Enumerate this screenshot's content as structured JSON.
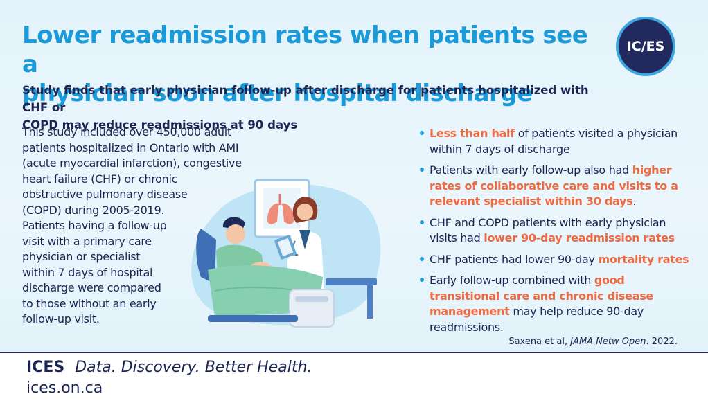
{
  "title": {
    "line1": "Lower readmission rates when patients see a",
    "line2": "physician soon after hospital discharge"
  },
  "subtitle": {
    "line1": "Study finds that early physician follow-up after discharge for patients hospitalized with CHF or",
    "line2": "COPD may reduce readmissions at 90 days"
  },
  "logo": {
    "text": "IC/ES"
  },
  "intro": {
    "lines": [
      "This study included over 450,000 adult",
      "patients hospitalized in Ontario with AMI",
      "(acute myocardial infarction), congestive",
      "heart failure (CHF) or chronic",
      "obstructive pulmonary disease",
      "(COPD) during 2005-2019.",
      "Patients having a follow-up",
      "visit with a primary care",
      "physician or specialist",
      "within 7 days of hospital",
      "discharge were compared",
      "to those without an early",
      "follow-up visit."
    ]
  },
  "bullets": [
    {
      "pre": "",
      "hl": "Less than half",
      "post": " of patients visited a physician within 7 days of discharge"
    },
    {
      "pre": "Patients with early follow-up also had ",
      "hl": "higher rates of collaborative care and visits to a relevant specialist within 30 days",
      "post": "."
    },
    {
      "pre": "CHF and COPD patients with early physician visits had ",
      "hl": "lower 90-day readmission rates",
      "post": ""
    },
    {
      "pre": "CHF patients had lower 90-day ",
      "hl": "mortality rates",
      "post": ""
    },
    {
      "pre": "Early follow-up combined with ",
      "hl": "good transitional care and chronic disease management",
      "post": " may help reduce 90-day readmissions."
    }
  ],
  "citation": {
    "authors": "Saxena et al, ",
    "journal": "JAMA Netw Open",
    "year": ". 2022."
  },
  "footer": {
    "brand": "ICES",
    "tagline": "Data. Discovery. Better Health.",
    "url": "ices.on.ca"
  },
  "colors": {
    "title": "#1a9ad9",
    "text": "#1c2452",
    "highlight": "#ee6a41",
    "background": "#e4f3fb",
    "logo_bg": "#22295e"
  },
  "illustration": {
    "icon": "doctor-patient-bed-illustration"
  }
}
